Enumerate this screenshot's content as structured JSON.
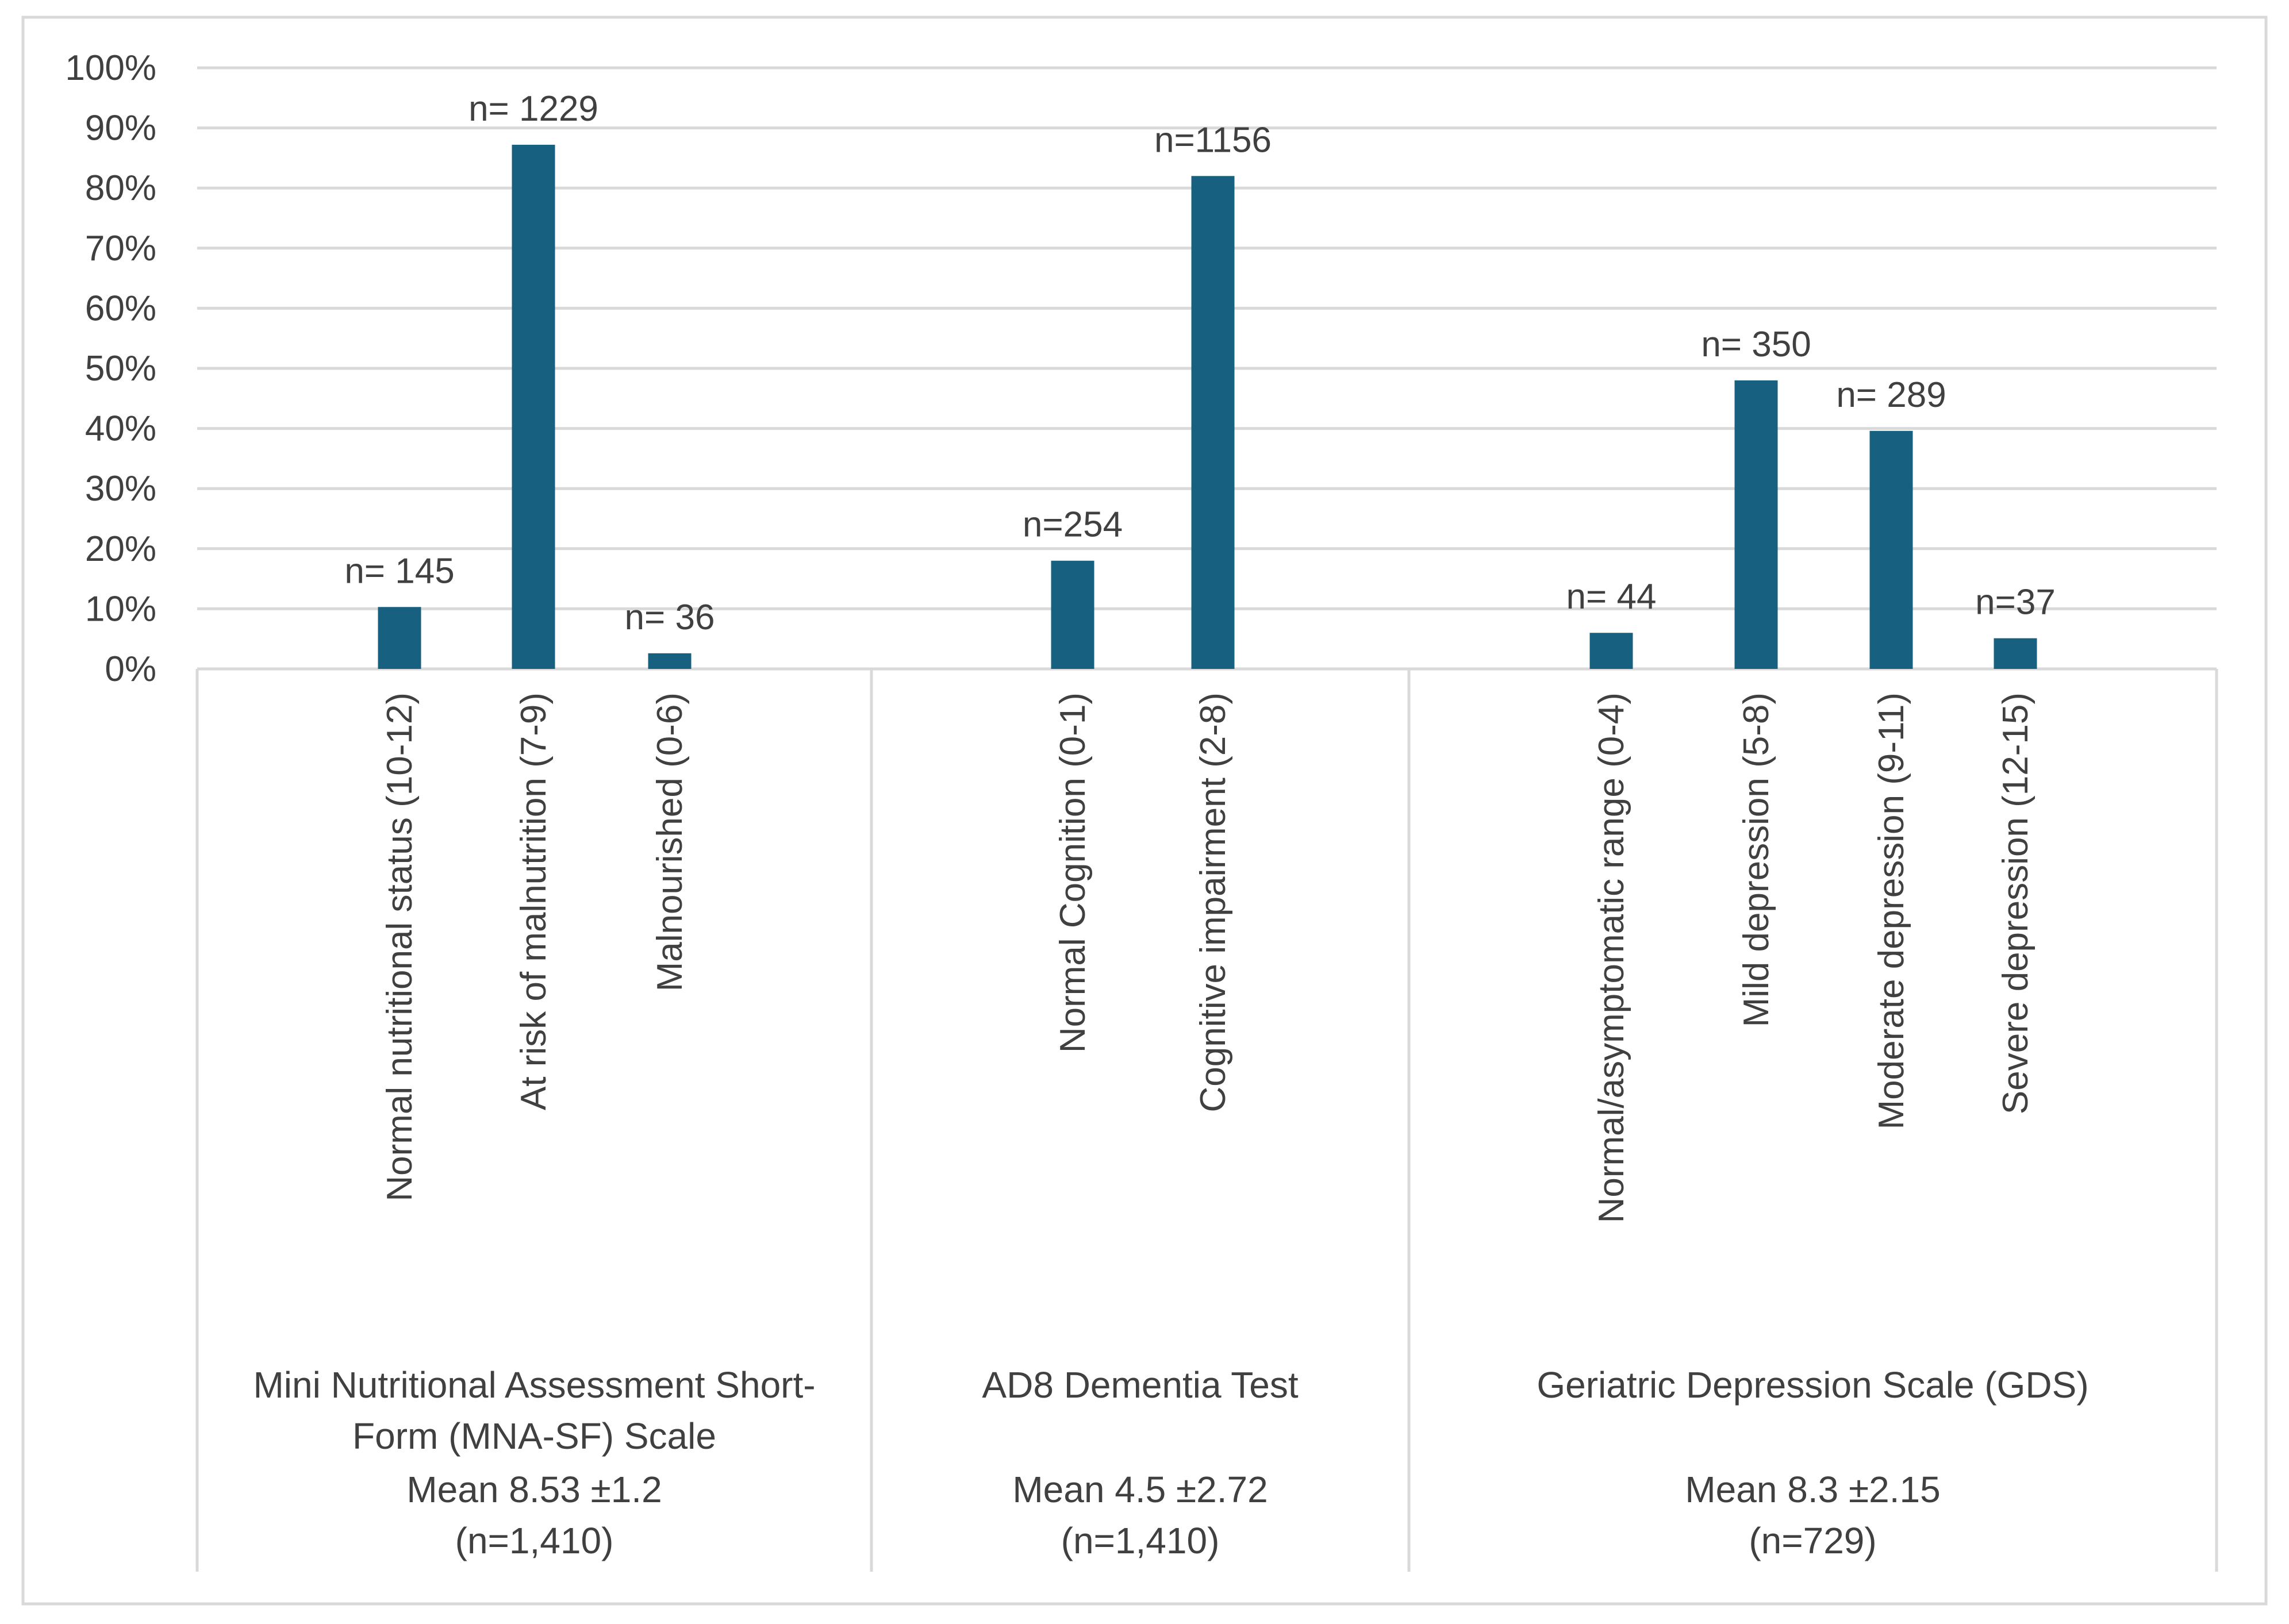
{
  "chart_data": {
    "type": "bar",
    "y_ticks": [
      "0%",
      "10%",
      "20%",
      "30%",
      "40%",
      "50%",
      "60%",
      "70%",
      "80%",
      "90%",
      "100%"
    ],
    "ylim": [
      0,
      100
    ],
    "grid": true,
    "bar_color": "#17607f",
    "groups": [
      {
        "label_lines": [
          "Mini Nutritional Assessment Short-",
          "Form (MNA-SF) Scale",
          "Mean 8.53 ±1.2",
          "(n=1,410)"
        ],
        "categories": [
          "Normal nutritional status (10-12)",
          "At risk of malnutrition (7-9)",
          "Malnourished (0-6)"
        ],
        "values": [
          10.3,
          87.2,
          2.6
        ],
        "data_labels": [
          "n= 145",
          "n= 1229",
          "n= 36"
        ]
      },
      {
        "label_lines": [
          "AD8 Dementia Test",
          "",
          "Mean 4.5 ±2.72",
          "(n=1,410)"
        ],
        "categories": [
          "Normal Cognition (0-1)",
          "Cognitive impairment (2-8)"
        ],
        "values": [
          18.0,
          82.0
        ],
        "data_labels": [
          "n=254",
          "n=1156"
        ]
      },
      {
        "label_lines": [
          "Geriatric Depression Scale (GDS)",
          "",
          "Mean 8.3 ±2.15",
          "(n=729)"
        ],
        "categories": [
          "Normal/asymptomatic range (0-4)",
          "Mild depression (5-8)",
          "Moderate depression (9-11)",
          "Severe depression (12-15)"
        ],
        "values": [
          6.0,
          48.0,
          39.6,
          5.1
        ],
        "data_labels": [
          "n= 44",
          "n= 350",
          "n= 289",
          "n=37"
        ]
      }
    ]
  }
}
